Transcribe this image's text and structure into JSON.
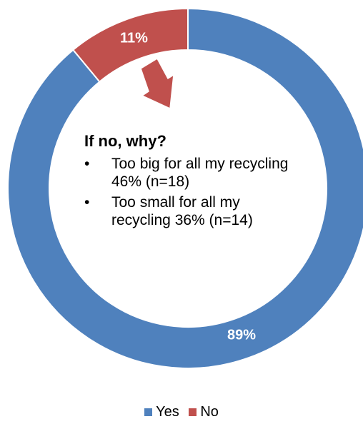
{
  "chart_data": {
    "type": "pie",
    "donut": true,
    "start_angle_deg": 0,
    "direction": "clockwise",
    "slices": [
      {
        "name": "Yes",
        "value": 89,
        "label": "89%",
        "color": "#4F81BD"
      },
      {
        "name": "No",
        "value": 11,
        "label": "11%",
        "color": "#C0504D"
      }
    ],
    "legend": {
      "placement": "bottom",
      "entries": [
        "Yes",
        "No"
      ]
    },
    "annotation": {
      "title": "If no, why?",
      "items": [
        "Too big for all my recycling 46% (n=18)",
        "Too small for all my recycling 36% (n=14)"
      ],
      "arrow_color": "#C0504D"
    }
  }
}
